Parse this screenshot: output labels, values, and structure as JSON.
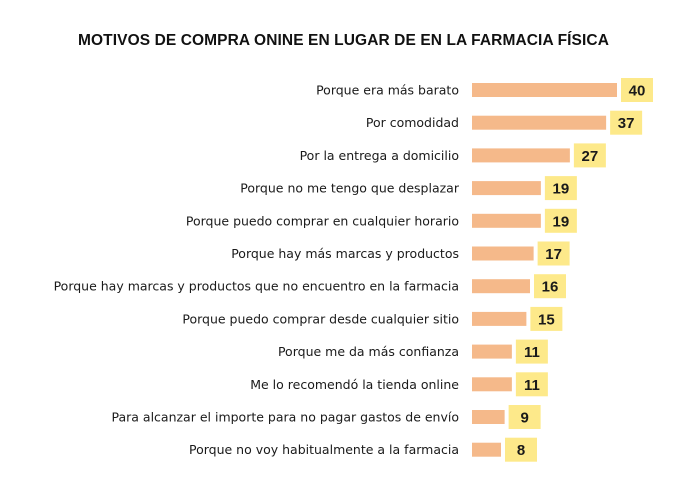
{
  "chart_data": {
    "type": "bar",
    "orientation": "horizontal",
    "title": "MOTIVOS DE COMPRA ONINE EN LUGAR DE EN LA FARMACIA FÍSICA",
    "categories": [
      "Porque era más barato",
      "Por comodidad",
      "Por la entrega a domicilio",
      "Porque no me tengo que desplazar",
      "Porque puedo comprar en cualquier horario",
      "Porque hay más marcas y productos",
      "Porque hay marcas y productos que no encuentro en la farmacia",
      "Porque puedo comprar desde cualquier sitio",
      "Porque me da más confianza",
      "Me lo recomendó la tienda online",
      "Para alcanzar el importe para no pagar gastos de envío",
      "Porque no voy habitualmente a la farmacia"
    ],
    "values": [
      40,
      37,
      27,
      19,
      19,
      17,
      16,
      15,
      11,
      11,
      9,
      8
    ],
    "xlim": [
      0,
      40
    ],
    "grid": false,
    "legend": "none",
    "colors": {
      "bar": "#f5b98a",
      "label_bg": "#fde98a",
      "text": "#1a1a1a"
    }
  }
}
